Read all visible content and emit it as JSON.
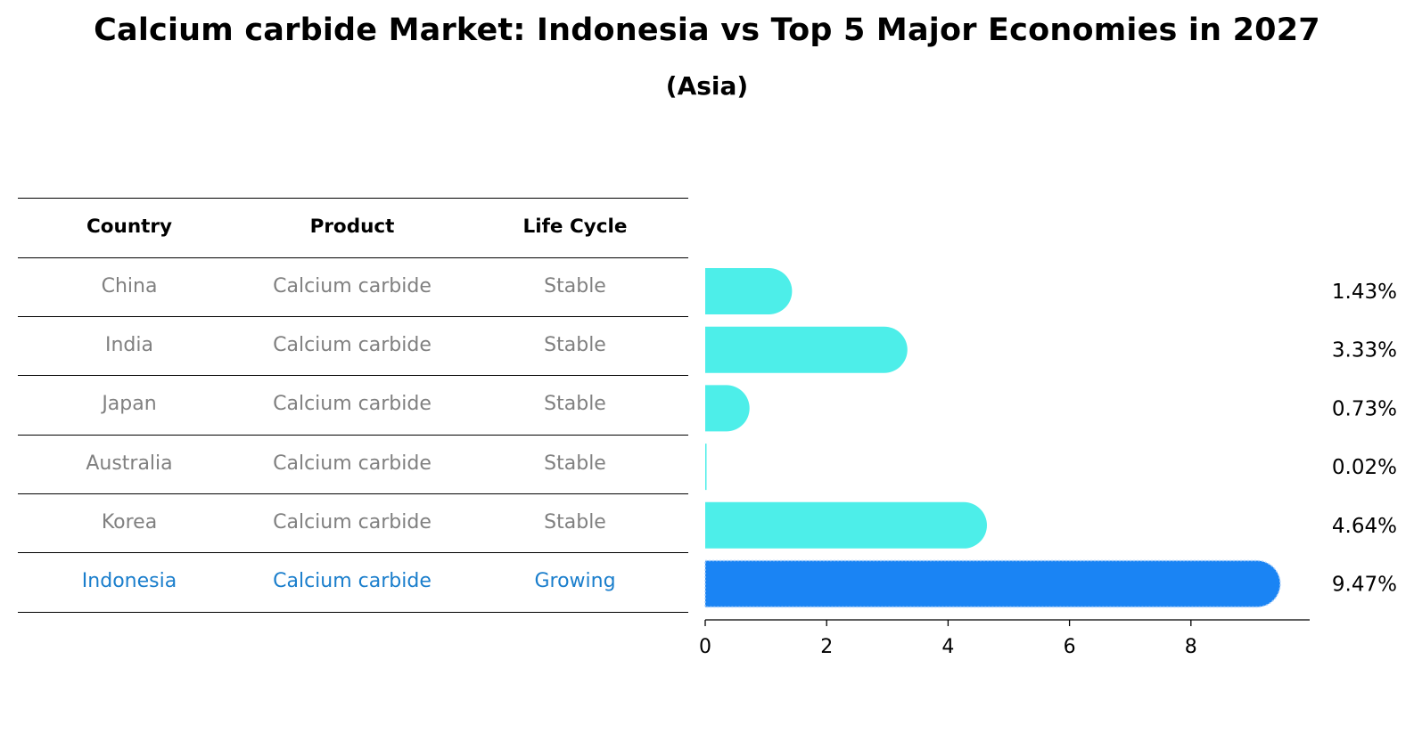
{
  "title": "Calcium carbide Market: Indonesia vs Top 5 Major Economies in 2027",
  "subtitle": "(Asia)",
  "table": {
    "headers": [
      "Country",
      "Product",
      "Life Cycle"
    ],
    "rows": [
      {
        "country": "China",
        "product": "Calcium carbide",
        "life_cycle": "Stable",
        "highlight": false
      },
      {
        "country": "India",
        "product": "Calcium carbide",
        "life_cycle": "Stable",
        "highlight": false
      },
      {
        "country": "Japan",
        "product": "Calcium carbide",
        "life_cycle": "Stable",
        "highlight": false
      },
      {
        "country": "Australia",
        "product": "Calcium carbide",
        "life_cycle": "Stable",
        "highlight": false
      },
      {
        "country": "Korea",
        "product": "Calcium carbide",
        "life_cycle": "Stable",
        "highlight": false
      },
      {
        "country": "Indonesia",
        "product": "Calcium carbide",
        "life_cycle": "Growing",
        "highlight": true
      }
    ]
  },
  "colors": {
    "bar": "#4deee9",
    "highlight_bar": "#1a84f4",
    "highlight_text": "#1a7ecc",
    "muted_text": "#808080"
  },
  "chart_data": {
    "type": "bar",
    "orientation": "horizontal",
    "categories": [
      "China",
      "India",
      "Japan",
      "Australia",
      "Korea",
      "Indonesia"
    ],
    "values": [
      1.43,
      3.33,
      0.73,
      0.02,
      4.64,
      9.47
    ],
    "value_labels": [
      "1.43%",
      "3.33%",
      "0.73%",
      "0.02%",
      "4.64%",
      "9.47%"
    ],
    "highlight_index": 5,
    "xlim": [
      0,
      9.94
    ],
    "xticks": [
      0,
      2,
      4,
      6,
      8
    ],
    "xlabel": "",
    "ylabel": "",
    "grid": false,
    "legend": false
  }
}
